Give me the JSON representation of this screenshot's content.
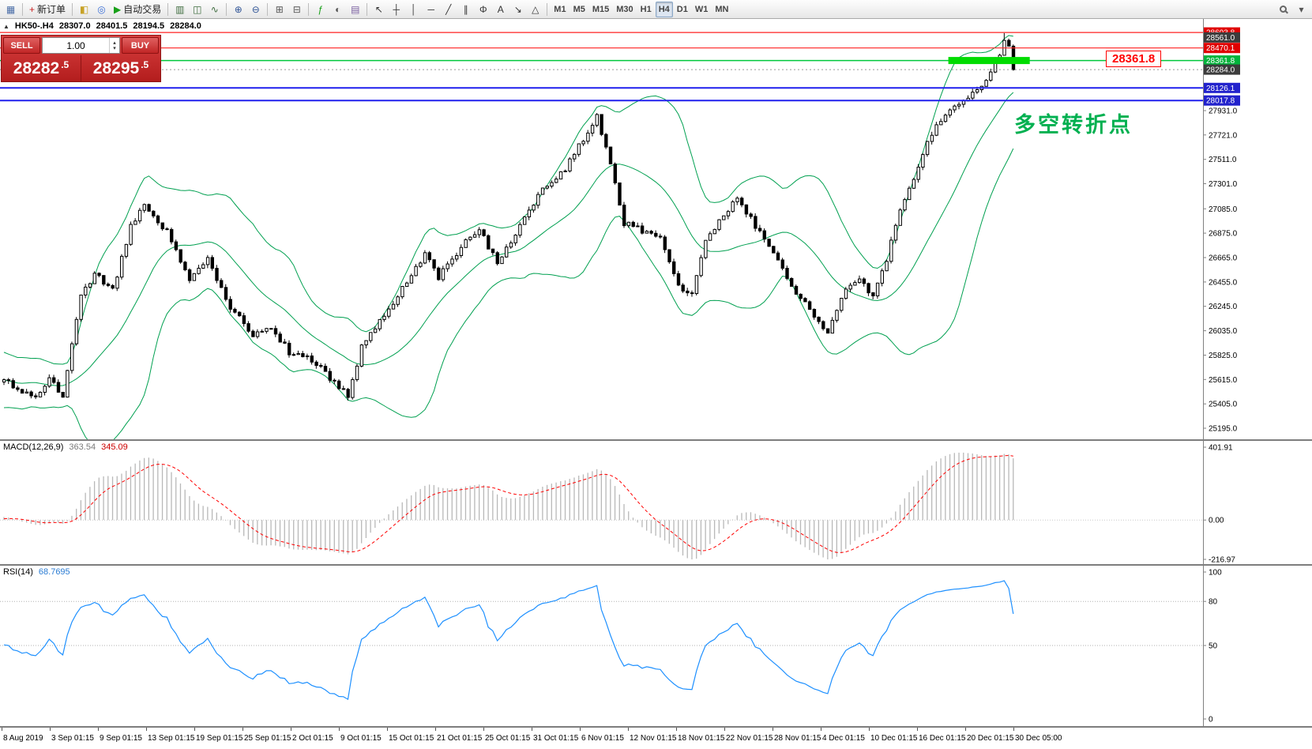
{
  "toolbar": {
    "icon_groups": [
      [
        {
          "name": "chart-window",
          "glyph": "▦",
          "color": "#4a6da7"
        }
      ],
      [
        {
          "name": "new-order",
          "glyph": "+",
          "color": "#cc2222",
          "label": "新订单"
        }
      ],
      [
        {
          "name": "expert-advisors",
          "glyph": "◧",
          "color": "#c8a227"
        },
        {
          "name": "market-watch",
          "glyph": "◎",
          "color": "#3a6fd8"
        },
        {
          "name": "autotrading",
          "glyph": "▶",
          "color": "#18a018",
          "label": "自动交易"
        }
      ],
      [
        {
          "name": "bar-chart",
          "glyph": "▥",
          "color": "#3d6b3d"
        },
        {
          "name": "candlestick-chart",
          "glyph": "◫",
          "color": "#3d6b3d"
        },
        {
          "name": "line-chart",
          "glyph": "∿",
          "color": "#3d6b3d"
        }
      ],
      [
        {
          "name": "zoom-in",
          "glyph": "⊕",
          "color": "#2f5496"
        },
        {
          "name": "zoom-out",
          "glyph": "⊖",
          "color": "#2f5496"
        }
      ],
      [
        {
          "name": "tile-windows",
          "glyph": "⊞",
          "color": "#555555"
        },
        {
          "name": "auto-arrange",
          "glyph": "⊟",
          "color": "#555555"
        }
      ],
      [
        {
          "name": "indicators",
          "glyph": "ƒ",
          "color": "#18a018"
        },
        {
          "name": "periods",
          "glyph": "◐",
          "color": "#555555"
        },
        {
          "name": "templates",
          "glyph": "▤",
          "color": "#7a5fa0"
        }
      ],
      [
        {
          "name": "cursor",
          "glyph": "↖",
          "color": "#333333"
        },
        {
          "name": "crosshair",
          "glyph": "┼",
          "color": "#333333"
        },
        {
          "name": "vertical-line",
          "glyph": "│",
          "color": "#333333"
        },
        {
          "name": "horizontal-line",
          "glyph": "─",
          "color": "#333333"
        },
        {
          "name": "trendline",
          "glyph": "╱",
          "color": "#333333"
        },
        {
          "name": "channel",
          "glyph": "∥",
          "color": "#333333"
        },
        {
          "name": "fibonacci",
          "glyph": "Φ",
          "color": "#333333"
        },
        {
          "name": "text-label",
          "glyph": "A",
          "color": "#333333"
        },
        {
          "name": "arrow-tools",
          "glyph": "↘",
          "color": "#333333"
        },
        {
          "name": "shapes",
          "glyph": "△",
          "color": "#333333"
        }
      ]
    ],
    "timeframes": [
      "M1",
      "M5",
      "M15",
      "M30",
      "H1",
      "H4",
      "D1",
      "W1",
      "MN"
    ],
    "active_timeframe": "H4",
    "right_items": [
      {
        "name": "search",
        "glyph": "",
        "css": "mag"
      },
      {
        "name": "quick-menu",
        "glyph": "▾",
        "color": "#555555"
      }
    ]
  },
  "chart": {
    "symbol_header": {
      "symbol": "HK50-.H4",
      "open": "28307.0",
      "high": "28401.5",
      "low": "28194.5",
      "close": "28284.0"
    },
    "annotations": {
      "price_label": "28361.8",
      "turning_point": "多空转折点"
    },
    "price_scale": [
      "27931.0",
      "27721.0",
      "27511.0",
      "27301.0",
      "27085.0",
      "26875.0",
      "26665.0",
      "26455.0",
      "26245.0",
      "26035.0",
      "25825.0",
      "25615.0",
      "25405.0",
      "25195.0"
    ],
    "price_tags": [
      {
        "text": "28603.8",
        "price": 28603.8,
        "color": "#e00000"
      },
      {
        "text": "28561.0",
        "price": 28561.0,
        "color": "#3c3c3c"
      },
      {
        "text": "28470.1",
        "price": 28470.1,
        "color": "#e00000"
      },
      {
        "text": "28361.8",
        "price": 28361.8,
        "color": "#00b43c"
      },
      {
        "text": "28284.0",
        "price": 28284.0,
        "color": "#3c3c3c"
      },
      {
        "text": "28126.1",
        "price": 28126.1,
        "color": "#2222cc"
      },
      {
        "text": "28017.8",
        "price": 28017.8,
        "color": "#2222cc"
      }
    ],
    "hlines": [
      {
        "price": 28603.8,
        "color": "#ff2020",
        "width": 1.2,
        "style": "solid"
      },
      {
        "price": 28470.1,
        "color": "#ff2020",
        "width": 1.2,
        "style": "solid"
      },
      {
        "price": 28361.8,
        "color": "#00c83c",
        "width": 1.5,
        "style": "solid"
      },
      {
        "price": 28284.0,
        "color": "#999999",
        "width": 1,
        "style": "dotted"
      },
      {
        "price": 28126.1,
        "color": "#2020ee",
        "width": 2,
        "style": "solid"
      },
      {
        "price": 28017.8,
        "color": "#2020ee",
        "width": 2,
        "style": "solid"
      }
    ],
    "highlight": {
      "price": 28361.8,
      "bar_start": 209,
      "bar_end": 227,
      "height": 9,
      "color": "#00dc00"
    }
  },
  "trade_panel": {
    "sell_label": "SELL",
    "buy_label": "BUY",
    "volume": "1.00",
    "sell_price_main": "28282",
    "sell_price_sup": ".5",
    "buy_price_main": "28295",
    "buy_price_sup": ".5"
  },
  "chart_data": {
    "main": {
      "type": "candlestick",
      "bars": 224,
      "y_max": 28720,
      "y_min": 25100,
      "close_noise": 26,
      "wick_noise": 30,
      "bollinger": {
        "period": 20,
        "deviation": 2,
        "color": "#00a050"
      },
      "anchors": [
        [
          0,
          25600
        ],
        [
          4,
          25520
        ],
        [
          7,
          25460
        ],
        [
          10,
          25640
        ],
        [
          13,
          25470
        ],
        [
          17,
          26350
        ],
        [
          20,
          26520
        ],
        [
          24,
          26380
        ],
        [
          28,
          26940
        ],
        [
          31,
          27130
        ],
        [
          36,
          26890
        ],
        [
          41,
          26470
        ],
        [
          45,
          26640
        ],
        [
          50,
          26240
        ],
        [
          55,
          25990
        ],
        [
          59,
          26060
        ],
        [
          63,
          25850
        ],
        [
          68,
          25790
        ],
        [
          73,
          25590
        ],
        [
          76,
          25470
        ],
        [
          79,
          25890
        ],
        [
          84,
          26180
        ],
        [
          89,
          26450
        ],
        [
          93,
          26690
        ],
        [
          96,
          26500
        ],
        [
          101,
          26760
        ],
        [
          105,
          26900
        ],
        [
          109,
          26620
        ],
        [
          113,
          26860
        ],
        [
          119,
          27260
        ],
        [
          124,
          27430
        ],
        [
          128,
          27690
        ],
        [
          131,
          27880
        ],
        [
          134,
          27490
        ],
        [
          137,
          26960
        ],
        [
          141,
          26900
        ],
        [
          145,
          26840
        ],
        [
          149,
          26410
        ],
        [
          152,
          26340
        ],
        [
          155,
          26790
        ],
        [
          159,
          27040
        ],
        [
          162,
          27160
        ],
        [
          166,
          26940
        ],
        [
          170,
          26700
        ],
        [
          174,
          26400
        ],
        [
          178,
          26240
        ],
        [
          182,
          25990
        ],
        [
          185,
          26340
        ],
        [
          189,
          26490
        ],
        [
          192,
          26320
        ],
        [
          195,
          26650
        ],
        [
          198,
          27090
        ],
        [
          201,
          27340
        ],
        [
          204,
          27690
        ],
        [
          207,
          27840
        ],
        [
          210,
          27950
        ],
        [
          213,
          28060
        ],
        [
          216,
          28160
        ],
        [
          218,
          28260
        ],
        [
          220,
          28430
        ],
        [
          221,
          28560
        ],
        [
          222,
          28500
        ],
        [
          223,
          28284
        ]
      ]
    },
    "macd": {
      "type": "histogram+line",
      "label": "MACD(12,26,9)",
      "value_main": "363.54",
      "value_signal": "345.09",
      "fast": 12,
      "slow": 26,
      "signal": 9,
      "range": [
        -216.97,
        401.91
      ],
      "axis": [
        "401.91",
        "0.00",
        "-216.97"
      ],
      "histogram_color": "#b8b8b8",
      "signal_color": "#ff0000"
    },
    "rsi": {
      "type": "line",
      "label": "RSI(14)",
      "value": "68.7695",
      "period": 14,
      "range": [
        0,
        100
      ],
      "levels": [
        80,
        50
      ],
      "axis": [
        "100",
        "80",
        "50",
        "0"
      ],
      "color": "#1e90ff"
    }
  },
  "time_axis": {
    "labels": [
      "8 Aug 2019",
      "3 Sep 01:15",
      "9 Sep 01:15",
      "13 Sep 01:15",
      "19 Sep 01:15",
      "25 Sep 01:15",
      "2 Oct 01:15",
      "9 Oct 01:15",
      "15 Oct 01:15",
      "21 Oct 01:15",
      "25 Oct 01:15",
      "31 Oct 01:15",
      "6 Nov 01:15",
      "12 Nov 01:15",
      "18 Nov 01:15",
      "22 Nov 01:15",
      "28 Nov 01:15",
      "4 Dec 01:15",
      "10 Dec 01:15",
      "16 Dec 01:15",
      "20 Dec 01:15",
      "30 Dec 05:00"
    ]
  }
}
